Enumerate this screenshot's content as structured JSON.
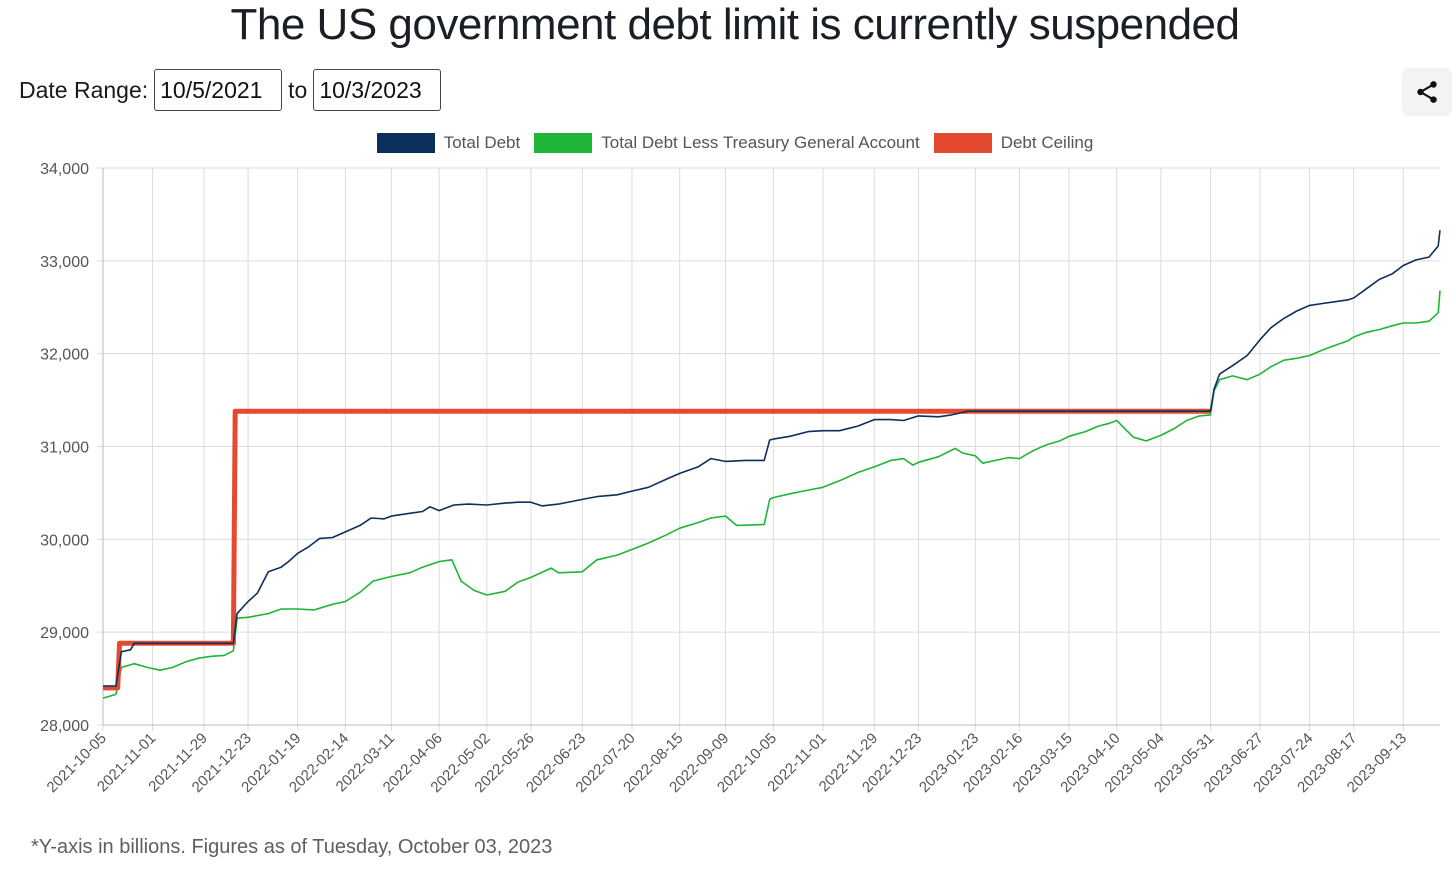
{
  "title": "The US government debt limit is currently suspended",
  "controls": {
    "date_range_label": "Date Range:",
    "start_date": "10/5/2021",
    "to_label": "to",
    "end_date": "10/3/2023"
  },
  "share_icon": "share-icon",
  "footnote": "*Y-axis in billions. Figures as of Tuesday, October 03, 2023",
  "chart_data": {
    "type": "line",
    "title": "The US government debt limit is currently suspended",
    "xlabel": "",
    "ylabel": "",
    "ylim": [
      28000,
      34000
    ],
    "xlim": [
      "2021-10-05",
      "2023-10-03"
    ],
    "grid": true,
    "legend_position": "top",
    "y_ticks": [
      "28,000",
      "29,000",
      "30,000",
      "31,000",
      "32,000",
      "33,000",
      "34,000"
    ],
    "y_tick_values": [
      28000,
      29000,
      30000,
      31000,
      32000,
      33000,
      34000
    ],
    "x_ticks": [
      "2021-10-05",
      "2021-11-01",
      "2021-11-29",
      "2021-12-23",
      "2022-01-19",
      "2022-02-14",
      "2022-03-11",
      "2022-04-06",
      "2022-05-02",
      "2022-05-26",
      "2022-06-23",
      "2022-07-20",
      "2022-08-15",
      "2022-09-09",
      "2022-10-05",
      "2022-11-01",
      "2022-11-29",
      "2022-12-23",
      "2023-01-23",
      "2023-02-16",
      "2023-03-15",
      "2023-04-10",
      "2023-05-04",
      "2023-05-31",
      "2023-06-27",
      "2023-07-24",
      "2023-08-17",
      "2023-09-13"
    ],
    "series": [
      {
        "name": "Total Debt",
        "color": "#0d2f5c",
        "points": [
          [
            "2021-10-05",
            28420
          ],
          [
            "2021-10-12",
            28420
          ],
          [
            "2021-10-15",
            28790
          ],
          [
            "2021-10-20",
            28810
          ],
          [
            "2021-10-22",
            28880
          ],
          [
            "2021-11-01",
            28880
          ],
          [
            "2021-11-15",
            28880
          ],
          [
            "2021-12-01",
            28880
          ],
          [
            "2021-12-15",
            28880
          ],
          [
            "2021-12-17",
            29200
          ],
          [
            "2021-12-23",
            29330
          ],
          [
            "2021-12-28",
            29420
          ],
          [
            "2022-01-03",
            29650
          ],
          [
            "2022-01-10",
            29700
          ],
          [
            "2022-01-14",
            29760
          ],
          [
            "2022-01-19",
            29850
          ],
          [
            "2022-01-25",
            29920
          ],
          [
            "2022-01-31",
            30010
          ],
          [
            "2022-02-07",
            30020
          ],
          [
            "2022-02-14",
            30080
          ],
          [
            "2022-02-22",
            30150
          ],
          [
            "2022-02-28",
            30230
          ],
          [
            "2022-03-07",
            30220
          ],
          [
            "2022-03-11",
            30250
          ],
          [
            "2022-03-21",
            30280
          ],
          [
            "2022-03-28",
            30300
          ],
          [
            "2022-04-01",
            30350
          ],
          [
            "2022-04-06",
            30310
          ],
          [
            "2022-04-14",
            30370
          ],
          [
            "2022-04-22",
            30380
          ],
          [
            "2022-05-02",
            30370
          ],
          [
            "2022-05-12",
            30390
          ],
          [
            "2022-05-19",
            30400
          ],
          [
            "2022-05-26",
            30400
          ],
          [
            "2022-06-01",
            30360
          ],
          [
            "2022-06-10",
            30380
          ],
          [
            "2022-06-23",
            30430
          ],
          [
            "2022-07-01",
            30460
          ],
          [
            "2022-07-12",
            30480
          ],
          [
            "2022-07-20",
            30520
          ],
          [
            "2022-07-29",
            30560
          ],
          [
            "2022-08-08",
            30650
          ],
          [
            "2022-08-15",
            30710
          ],
          [
            "2022-08-25",
            30780
          ],
          [
            "2022-09-01",
            30870
          ],
          [
            "2022-09-09",
            30840
          ],
          [
            "2022-09-20",
            30850
          ],
          [
            "2022-09-30",
            30850
          ],
          [
            "2022-10-03",
            31070
          ],
          [
            "2022-10-05",
            31080
          ],
          [
            "2022-10-14",
            31110
          ],
          [
            "2022-10-24",
            31160
          ],
          [
            "2022-11-01",
            31170
          ],
          [
            "2022-11-10",
            31170
          ],
          [
            "2022-11-20",
            31220
          ],
          [
            "2022-11-29",
            31290
          ],
          [
            "2022-12-08",
            31290
          ],
          [
            "2022-12-15",
            31280
          ],
          [
            "2022-12-23",
            31330
          ],
          [
            "2023-01-03",
            31320
          ],
          [
            "2023-01-10",
            31340
          ],
          [
            "2023-01-19",
            31380
          ],
          [
            "2023-01-23",
            31380
          ],
          [
            "2023-02-16",
            31380
          ],
          [
            "2023-03-15",
            31380
          ],
          [
            "2023-04-10",
            31380
          ],
          [
            "2023-05-04",
            31380
          ],
          [
            "2023-05-31",
            31380
          ],
          [
            "2023-06-02",
            31620
          ],
          [
            "2023-06-05",
            31780
          ],
          [
            "2023-06-12",
            31870
          ],
          [
            "2023-06-20",
            31980
          ],
          [
            "2023-06-27",
            32150
          ],
          [
            "2023-07-03",
            32280
          ],
          [
            "2023-07-10",
            32380
          ],
          [
            "2023-07-17",
            32460
          ],
          [
            "2023-07-24",
            32520
          ],
          [
            "2023-07-31",
            32540
          ],
          [
            "2023-08-07",
            32560
          ],
          [
            "2023-08-14",
            32580
          ],
          [
            "2023-08-17",
            32600
          ],
          [
            "2023-08-24",
            32700
          ],
          [
            "2023-08-31",
            32800
          ],
          [
            "2023-09-07",
            32860
          ],
          [
            "2023-09-13",
            32950
          ],
          [
            "2023-09-20",
            33010
          ],
          [
            "2023-09-27",
            33040
          ],
          [
            "2023-10-02",
            33160
          ],
          [
            "2023-10-03",
            33330
          ]
        ]
      },
      {
        "name": "Total Debt Less Treasury General Account",
        "color": "#1fb536",
        "points": [
          [
            "2021-10-05",
            28290
          ],
          [
            "2021-10-12",
            28330
          ],
          [
            "2021-10-15",
            28620
          ],
          [
            "2021-10-22",
            28660
          ],
          [
            "2021-10-29",
            28620
          ],
          [
            "2021-11-05",
            28590
          ],
          [
            "2021-11-12",
            28620
          ],
          [
            "2021-11-19",
            28680
          ],
          [
            "2021-11-26",
            28720
          ],
          [
            "2021-12-03",
            28740
          ],
          [
            "2021-12-10",
            28750
          ],
          [
            "2021-12-15",
            28800
          ],
          [
            "2021-12-17",
            29150
          ],
          [
            "2021-12-23",
            29160
          ],
          [
            "2022-01-03",
            29200
          ],
          [
            "2022-01-10",
            29250
          ],
          [
            "2022-01-19",
            29250
          ],
          [
            "2022-01-28",
            29240
          ],
          [
            "2022-02-07",
            29300
          ],
          [
            "2022-02-14",
            29330
          ],
          [
            "2022-02-22",
            29430
          ],
          [
            "2022-03-01",
            29550
          ],
          [
            "2022-03-11",
            29600
          ],
          [
            "2022-03-21",
            29640
          ],
          [
            "2022-03-28",
            29700
          ],
          [
            "2022-04-06",
            29760
          ],
          [
            "2022-04-13",
            29780
          ],
          [
            "2022-04-18",
            29550
          ],
          [
            "2022-04-25",
            29450
          ],
          [
            "2022-05-02",
            29400
          ],
          [
            "2022-05-12",
            29440
          ],
          [
            "2022-05-19",
            29540
          ],
          [
            "2022-05-26",
            29590
          ],
          [
            "2022-06-06",
            29690
          ],
          [
            "2022-06-10",
            29640
          ],
          [
            "2022-06-23",
            29650
          ],
          [
            "2022-07-01",
            29780
          ],
          [
            "2022-07-12",
            29830
          ],
          [
            "2022-07-20",
            29890
          ],
          [
            "2022-07-29",
            29960
          ],
          [
            "2022-08-08",
            30050
          ],
          [
            "2022-08-15",
            30120
          ],
          [
            "2022-08-25",
            30180
          ],
          [
            "2022-09-01",
            30230
          ],
          [
            "2022-09-09",
            30250
          ],
          [
            "2022-09-15",
            30150
          ],
          [
            "2022-09-30",
            30160
          ],
          [
            "2022-10-03",
            30430
          ],
          [
            "2022-10-05",
            30450
          ],
          [
            "2022-10-14",
            30490
          ],
          [
            "2022-10-24",
            30530
          ],
          [
            "2022-11-01",
            30560
          ],
          [
            "2022-11-10",
            30630
          ],
          [
            "2022-11-20",
            30720
          ],
          [
            "2022-11-29",
            30780
          ],
          [
            "2022-12-08",
            30850
          ],
          [
            "2022-12-15",
            30870
          ],
          [
            "2022-12-20",
            30800
          ],
          [
            "2022-12-23",
            30830
          ],
          [
            "2023-01-03",
            30890
          ],
          [
            "2023-01-12",
            30980
          ],
          [
            "2023-01-16",
            30930
          ],
          [
            "2023-01-23",
            30900
          ],
          [
            "2023-01-27",
            30820
          ],
          [
            "2023-02-03",
            30850
          ],
          [
            "2023-02-10",
            30880
          ],
          [
            "2023-02-16",
            30870
          ],
          [
            "2023-02-24",
            30960
          ],
          [
            "2023-03-03",
            31020
          ],
          [
            "2023-03-10",
            31060
          ],
          [
            "2023-03-15",
            31110
          ],
          [
            "2023-03-24",
            31160
          ],
          [
            "2023-03-31",
            31220
          ],
          [
            "2023-04-06",
            31250
          ],
          [
            "2023-04-10",
            31280
          ],
          [
            "2023-04-14",
            31200
          ],
          [
            "2023-04-19",
            31100
          ],
          [
            "2023-04-26",
            31060
          ],
          [
            "2023-05-04",
            31120
          ],
          [
            "2023-05-11",
            31190
          ],
          [
            "2023-05-18",
            31280
          ],
          [
            "2023-05-25",
            31330
          ],
          [
            "2023-05-31",
            31340
          ],
          [
            "2023-06-02",
            31600
          ],
          [
            "2023-06-05",
            31720
          ],
          [
            "2023-06-12",
            31760
          ],
          [
            "2023-06-20",
            31720
          ],
          [
            "2023-06-27",
            31780
          ],
          [
            "2023-07-03",
            31860
          ],
          [
            "2023-07-10",
            31930
          ],
          [
            "2023-07-17",
            31950
          ],
          [
            "2023-07-24",
            31980
          ],
          [
            "2023-07-31",
            32040
          ],
          [
            "2023-08-07",
            32090
          ],
          [
            "2023-08-14",
            32140
          ],
          [
            "2023-08-17",
            32180
          ],
          [
            "2023-08-24",
            32230
          ],
          [
            "2023-08-31",
            32260
          ],
          [
            "2023-09-07",
            32300
          ],
          [
            "2023-09-13",
            32330
          ],
          [
            "2023-09-20",
            32330
          ],
          [
            "2023-09-27",
            32350
          ],
          [
            "2023-10-02",
            32440
          ],
          [
            "2023-10-03",
            32680
          ]
        ]
      },
      {
        "name": "Debt Ceiling",
        "color": "#e44a30",
        "points": [
          [
            "2021-10-05",
            28400
          ],
          [
            "2021-10-13",
            28400
          ],
          [
            "2021-10-14",
            28880
          ],
          [
            "2021-12-15",
            28880
          ],
          [
            "2021-12-16",
            31380
          ],
          [
            "2023-05-31",
            31380
          ]
        ]
      }
    ]
  }
}
